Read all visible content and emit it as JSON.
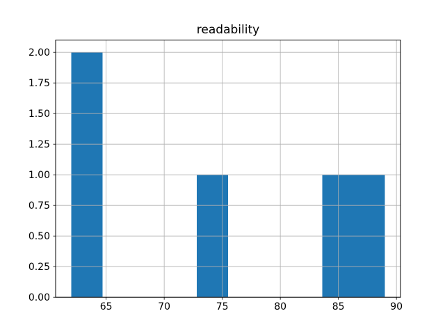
{
  "chart_data": {
    "type": "bar",
    "subtype": "histogram",
    "title": "readability",
    "xlabel": "",
    "ylabel": "",
    "bin_edges": [
      62.0,
      64.7,
      67.4,
      70.1,
      72.8,
      75.5,
      78.2,
      80.9,
      83.6,
      86.3,
      89.0
    ],
    "counts": [
      2,
      0,
      0,
      0,
      1,
      0,
      0,
      0,
      1,
      1
    ],
    "xlim": [
      60.65,
      90.35
    ],
    "ylim": [
      0,
      2.1
    ],
    "x_tick_values": [
      65,
      70,
      75,
      80,
      85,
      90
    ],
    "x_tick_labels": [
      "65",
      "70",
      "75",
      "80",
      "85",
      "90"
    ],
    "y_tick_values": [
      0,
      0.25,
      0.5,
      0.75,
      1.0,
      1.25,
      1.5,
      1.75,
      2.0
    ],
    "y_tick_labels": [
      "0.00",
      "0.25",
      "0.50",
      "0.75",
      "1.00",
      "1.25",
      "1.50",
      "1.75",
      "2.00"
    ],
    "grid": true,
    "grid_above_bars": true,
    "legend_position": "none",
    "colors": {
      "bar": "#1f77b4",
      "grid": "#b0b0b0",
      "axis": "#000000",
      "background": "#ffffff"
    }
  }
}
